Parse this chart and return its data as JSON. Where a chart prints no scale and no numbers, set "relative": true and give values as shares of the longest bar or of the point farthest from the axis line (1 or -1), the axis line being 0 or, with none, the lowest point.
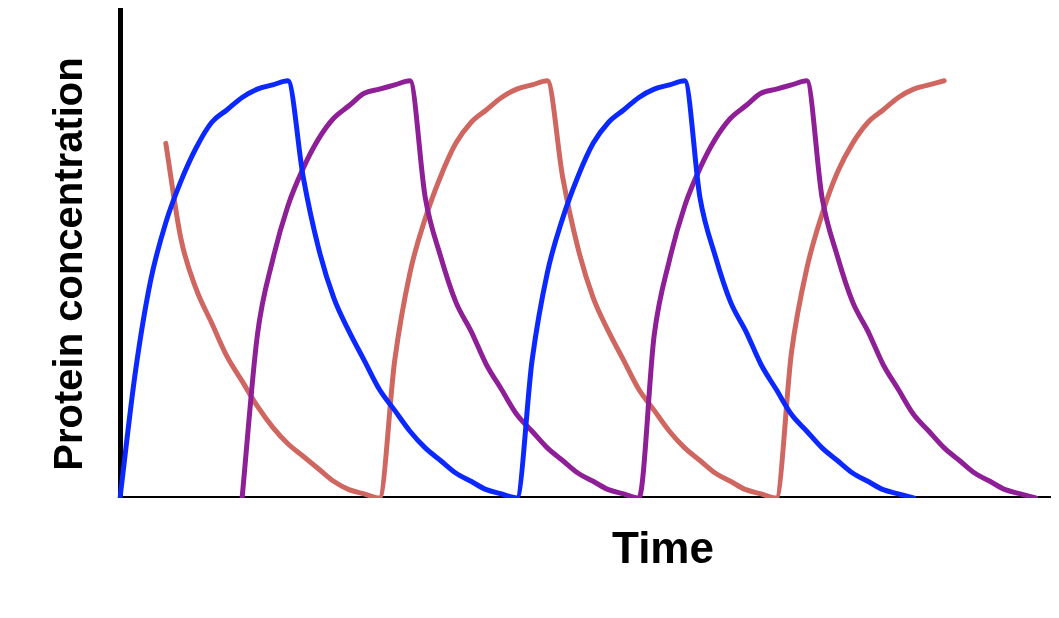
{
  "chart_data": {
    "type": "line",
    "relative": true,
    "xlabel": "Time",
    "ylabel": "Protein concentration",
    "categories": [
      null,
      null,
      null,
      null,
      null,
      null,
      null,
      null,
      null,
      null,
      null,
      null,
      null,
      null,
      null,
      null,
      null,
      null,
      null,
      null,
      null,
      null,
      null,
      null,
      null,
      null,
      null,
      null,
      null,
      null,
      null,
      null,
      null,
      null,
      null,
      null,
      null,
      null,
      null,
      null,
      null,
      null,
      null,
      null,
      null,
      null,
      null,
      null,
      null,
      null,
      null,
      null,
      null,
      null,
      null,
      null,
      null,
      null,
      null,
      null,
      null,
      null
    ],
    "series": [
      {
        "color": "#0a28ff",
        "values": [
          0,
          0.3,
          0.52,
          0.66,
          0.76,
          0.84,
          0.9,
          0.93,
          0.96,
          0.98,
          0.99,
          1,
          0.77,
          0.6,
          0.48,
          0.4,
          0.33,
          0.26,
          0.21,
          0.16,
          0.12,
          0.09,
          0.06,
          0.04,
          0.02,
          0.01,
          0,
          0.33,
          0.54,
          0.67,
          0.77,
          0.85,
          0.9,
          0.93,
          0.96,
          0.98,
          0.99,
          1,
          0.72,
          0.58,
          0.47,
          0.4,
          0.32,
          0.26,
          0.2,
          0.16,
          0.12,
          0.09,
          0.06,
          0.04,
          0.02,
          0.01,
          0,
          null,
          null,
          null,
          null,
          null,
          null,
          null,
          null,
          null
        ]
      },
      {
        "color": "#8e1f96",
        "values": [
          null,
          null,
          null,
          null,
          null,
          null,
          null,
          null,
          0,
          0.39,
          0.57,
          0.7,
          0.79,
          0.86,
          0.91,
          0.94,
          0.97,
          0.98,
          0.99,
          1,
          0.72,
          0.58,
          0.47,
          0.4,
          0.32,
          0.26,
          0.2,
          0.16,
          0.12,
          0.09,
          0.06,
          0.04,
          0.02,
          0.01,
          0,
          0.39,
          0.57,
          0.7,
          0.79,
          0.86,
          0.91,
          0.94,
          0.97,
          0.98,
          0.99,
          1,
          0.72,
          0.58,
          0.47,
          0.4,
          0.32,
          0.26,
          0.2,
          0.16,
          0.12,
          0.09,
          0.06,
          0.04,
          0.02,
          0.01,
          0,
          null
        ]
      },
      {
        "color": "#cf6660",
        "values": [
          null,
          null,
          null,
          0.85,
          0.62,
          0.5,
          0.42,
          0.34,
          0.28,
          0.22,
          0.17,
          0.13,
          0.1,
          0.07,
          0.04,
          0.02,
          0.01,
          0,
          0.33,
          0.54,
          0.67,
          0.77,
          0.85,
          0.9,
          0.93,
          0.96,
          0.98,
          0.99,
          1,
          0.77,
          0.6,
          0.48,
          0.4,
          0.33,
          0.26,
          0.21,
          0.16,
          0.12,
          0.09,
          0.06,
          0.04,
          0.02,
          0.01,
          0,
          0.35,
          0.55,
          0.68,
          0.78,
          0.85,
          0.9,
          0.93,
          0.96,
          0.98,
          0.99,
          1,
          null,
          null,
          null,
          null,
          null,
          null,
          null
        ]
      }
    ]
  }
}
